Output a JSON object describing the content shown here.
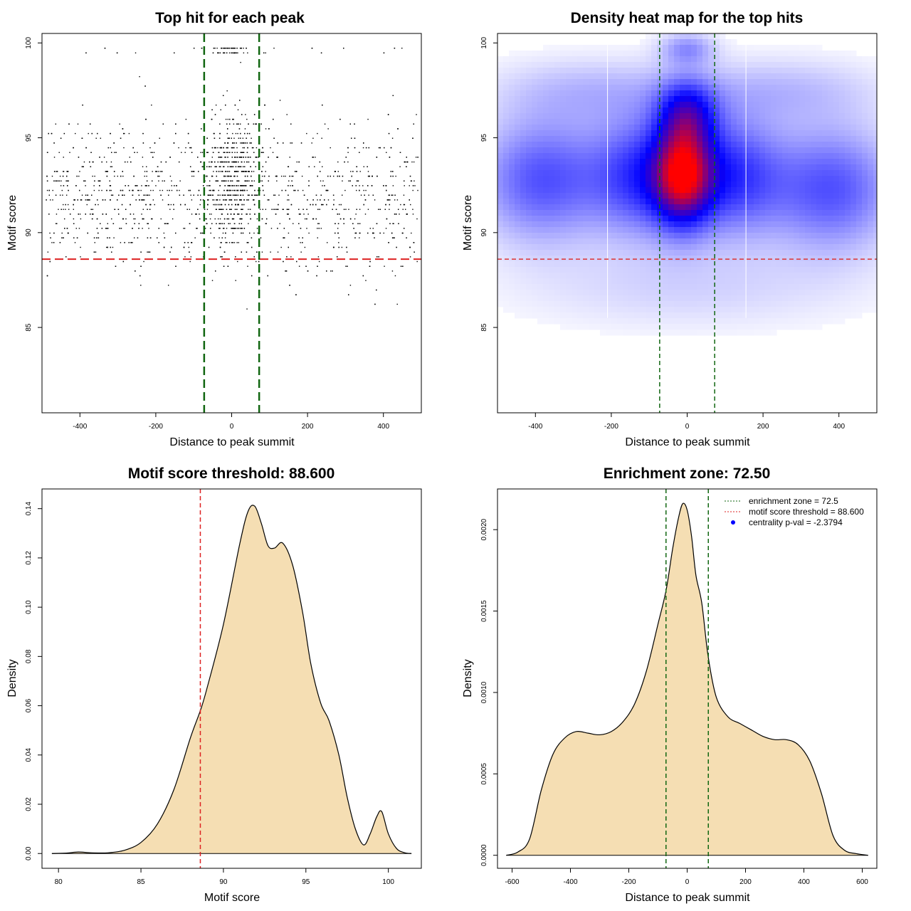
{
  "chart_data": [
    {
      "id": "scatter",
      "type": "scatter",
      "title": "Top hit for each peak",
      "xlabel": "Distance to peak summit",
      "ylabel": "Motif score",
      "xlim": [
        -500,
        500
      ],
      "ylim": [
        80.5,
        100.5
      ],
      "xticks": [
        -400,
        -200,
        0,
        200,
        400
      ],
      "xtick_labels": [
        "-400",
        "-200",
        "0",
        "200",
        "400"
      ],
      "yticks": [
        85,
        90,
        95,
        100
      ],
      "ytick_labels": [
        "85",
        "90",
        "95",
        "100"
      ],
      "threshold_y": 88.6,
      "zone_x": [
        -72.5,
        72.5
      ],
      "threshold_color": "#dd2222",
      "zone_color": "#116611",
      "point_count": 3000,
      "point_color": "#000000"
    },
    {
      "id": "heatmap",
      "type": "heatmap",
      "title": "Density heat map for the top hits",
      "xlabel": "Distance to peak summit",
      "ylabel": "Motif score",
      "xlim": [
        -500,
        500
      ],
      "ylim": [
        80.5,
        100.5
      ],
      "xticks": [
        -400,
        -200,
        0,
        200,
        400
      ],
      "xtick_labels": [
        "-400",
        "-200",
        "0",
        "200",
        "400"
      ],
      "yticks": [
        85,
        90,
        95,
        100
      ],
      "ytick_labels": [
        "85",
        "90",
        "95",
        "100"
      ],
      "threshold_y": 88.6,
      "zone_x": [
        -72.5,
        72.5
      ],
      "grid_lines_x": [
        -210,
        155
      ],
      "colors": {
        "low": "#ffffff",
        "mid": "#0000ff",
        "high": "#ff0000"
      },
      "hotspots": [
        {
          "x": -10,
          "y": 93,
          "intensity": 1.0
        },
        {
          "x": 0,
          "y": 96.5,
          "intensity": 0.6
        },
        {
          "x": -390,
          "y": 93,
          "intensity": 0.55
        },
        {
          "x": 390,
          "y": 92.5,
          "intensity": 0.55
        },
        {
          "x": 0,
          "y": 99.5,
          "intensity": 0.3
        }
      ]
    },
    {
      "id": "score_density",
      "type": "area",
      "title": "Motif score threshold: 88.600",
      "xlabel": "Motif score",
      "ylabel": "Density",
      "xlim": [
        79,
        102
      ],
      "ylim": [
        -0.006,
        0.148
      ],
      "xticks": [
        80,
        85,
        90,
        95,
        100
      ],
      "xtick_labels": [
        "80",
        "85",
        "90",
        "95",
        "100"
      ],
      "yticks": [
        0,
        0.02,
        0.04,
        0.06,
        0.08,
        0.1,
        0.12,
        0.14
      ],
      "ytick_labels": [
        "0.00",
        "0.02",
        "0.04",
        "0.06",
        "0.08",
        "0.10",
        "0.12",
        "0.14"
      ],
      "fill_color": "#f5deb3",
      "threshold_x": 88.6,
      "threshold_color": "#dd2222",
      "x": [
        79.6,
        80.5,
        81.2,
        82.0,
        83.0,
        84.0,
        85.0,
        86.0,
        87.0,
        88.0,
        88.6,
        89.0,
        90.0,
        91.0,
        91.5,
        91.9,
        92.3,
        92.7,
        93.1,
        93.6,
        94.2,
        94.8,
        95.3,
        95.9,
        96.4,
        97.0,
        97.5,
        98.0,
        98.5,
        98.9,
        99.3,
        99.6,
        100.0,
        100.5,
        101.0,
        101.4
      ],
      "y": [
        0.0,
        0.0002,
        0.0006,
        0.0003,
        0.0003,
        0.0013,
        0.0045,
        0.012,
        0.026,
        0.047,
        0.058,
        0.067,
        0.093,
        0.126,
        0.139,
        0.141,
        0.134,
        0.125,
        0.124,
        0.126,
        0.117,
        0.098,
        0.077,
        0.061,
        0.054,
        0.04,
        0.023,
        0.01,
        0.0035,
        0.008,
        0.015,
        0.017,
        0.008,
        0.002,
        0.0003,
        0.0
      ]
    },
    {
      "id": "distance_density",
      "type": "area",
      "title": "Enrichment zone: 72.50",
      "xlabel": "Distance to peak summit",
      "ylabel": "Density",
      "xlim": [
        -650,
        650
      ],
      "ylim": [
        -8e-05,
        0.00225
      ],
      "xticks": [
        -600,
        -400,
        -200,
        0,
        200,
        400,
        600
      ],
      "xtick_labels": [
        "-600",
        "-400",
        "-200",
        "0",
        "200",
        "400",
        "600"
      ],
      "yticks": [
        0,
        0.0005,
        0.001,
        0.0015,
        0.002
      ],
      "ytick_labels": [
        "0.0000",
        "0.0005",
        "0.0010",
        "0.0015",
        "0.0020"
      ],
      "fill_color": "#f5deb3",
      "zone_x": [
        -72.5,
        72.5
      ],
      "zone_color": "#116611",
      "x": [
        -620,
        -580,
        -540,
        -500,
        -460,
        -420,
        -380,
        -340,
        -300,
        -260,
        -220,
        -180,
        -140,
        -100,
        -72,
        -50,
        -30,
        -15,
        0,
        15,
        30,
        50,
        72,
        100,
        140,
        180,
        220,
        260,
        300,
        340,
        380,
        420,
        460,
        500,
        540,
        580,
        620
      ],
      "y": [
        0.0,
        2e-05,
        0.0001,
        0.0004,
        0.00062,
        0.00072,
        0.00076,
        0.00075,
        0.00074,
        0.00076,
        0.00082,
        0.00093,
        0.00113,
        0.00142,
        0.00163,
        0.00188,
        0.00207,
        0.00216,
        0.00212,
        0.00196,
        0.00172,
        0.00155,
        0.00122,
        0.00097,
        0.00085,
        0.00081,
        0.00077,
        0.00073,
        0.00071,
        0.00071,
        0.00068,
        0.00058,
        0.00038,
        0.00012,
        3e-05,
        1e-05,
        0.0
      ]
    }
  ],
  "legend": {
    "items": [
      {
        "label": "enrichment zone = 72.5",
        "color": "#116611",
        "style": "dotted"
      },
      {
        "label": "motif score threshold = 88.600",
        "color": "#dd2222",
        "style": "dotted"
      },
      {
        "label": "centrality p-val = -2.3794",
        "color": "#0000ff",
        "style": "point"
      }
    ]
  }
}
